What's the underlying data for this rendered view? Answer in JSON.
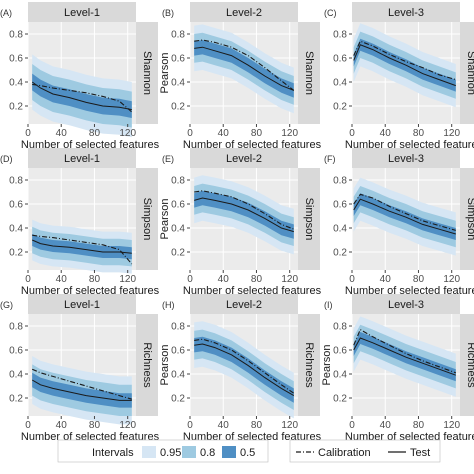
{
  "figure": {
    "legend": {
      "intervals_title": "Intervals",
      "intervals": [
        {
          "label": "0.95",
          "color": "#d6e6f4"
        },
        {
          "label": "0.8",
          "color": "#9ecae1"
        },
        {
          "label": "0.5",
          "color": "#4f8fc4"
        }
      ],
      "lines": [
        {
          "label": "Calibration",
          "style": "dotdash"
        },
        {
          "label": "Test",
          "style": "solid"
        }
      ]
    },
    "colors": {
      "strip": "#d9d9d9",
      "panel_bg": "#ebebeb",
      "grid": "#ffffff",
      "line": "#1a1a1a"
    }
  },
  "chart_data": [
    {
      "tag": "(A)",
      "type": "line",
      "level": "Level-1",
      "metric": "Shannon",
      "xlabel": "Number of selected features",
      "ylabel": "",
      "xlim": [
        0,
        130
      ],
      "ylim": [
        0.05,
        0.9
      ],
      "xticks": [
        "0",
        "40",
        "80",
        "120"
      ],
      "yticks": [
        "0.2",
        "0.4",
        "0.6",
        "0.8"
      ],
      "x": [
        5,
        15,
        30,
        50,
        70,
        90,
        110,
        125
      ],
      "test": [
        0.4,
        0.35,
        0.3,
        0.27,
        0.23,
        0.2,
        0.19,
        0.17
      ],
      "calibration": [
        0.38,
        0.37,
        0.35,
        0.33,
        0.31,
        0.28,
        0.24,
        0.15
      ],
      "band_half_width": {
        "0.5": 0.07,
        "0.8": 0.15,
        "0.95": 0.23
      }
    },
    {
      "tag": "(B)",
      "type": "line",
      "level": "Level-2",
      "metric": "Shannon",
      "xlabel": "Number of selected features",
      "ylabel": "Pearson",
      "xlim": [
        0,
        130
      ],
      "ylim": [
        0.05,
        0.9
      ],
      "xticks": [
        "0",
        "40",
        "80",
        "120"
      ],
      "yticks": [
        "0.2",
        "0.4",
        "0.6",
        "0.8"
      ],
      "x": [
        5,
        15,
        30,
        50,
        70,
        90,
        110,
        125
      ],
      "test": [
        0.68,
        0.69,
        0.66,
        0.62,
        0.54,
        0.45,
        0.37,
        0.33
      ],
      "calibration": [
        0.74,
        0.75,
        0.73,
        0.69,
        0.62,
        0.52,
        0.41,
        0.33
      ],
      "band_half_width": {
        "0.5": 0.06,
        "0.8": 0.12,
        "0.95": 0.19
      }
    },
    {
      "tag": "(C)",
      "type": "line",
      "level": "Level-3",
      "metric": "Shannon",
      "xlabel": "Number of selected features",
      "ylabel": "",
      "xlim": [
        0,
        130
      ],
      "ylim": [
        0.05,
        0.9
      ],
      "xticks": [
        "0",
        "40",
        "80",
        "120"
      ],
      "yticks": [
        "0.2",
        "0.4",
        "0.6",
        "0.8"
      ],
      "x": [
        2,
        10,
        25,
        45,
        65,
        85,
        105,
        125
      ],
      "test": [
        0.58,
        0.71,
        0.67,
        0.6,
        0.54,
        0.47,
        0.42,
        0.37
      ],
      "calibration": [
        0.62,
        0.74,
        0.7,
        0.63,
        0.57,
        0.52,
        0.46,
        0.42
      ],
      "band_half_width": {
        "0.5": 0.05,
        "0.8": 0.11,
        "0.95": 0.18
      }
    },
    {
      "tag": "(D)",
      "type": "line",
      "level": "Level-1",
      "metric": "Simpson",
      "xlabel": "Number of selected features",
      "ylabel": "",
      "xlim": [
        0,
        130
      ],
      "ylim": [
        0.05,
        0.9
      ],
      "xticks": [
        "0",
        "40",
        "80",
        "120"
      ],
      "yticks": [
        "0.2",
        "0.4",
        "0.6",
        "0.8"
      ],
      "x": [
        5,
        15,
        30,
        50,
        70,
        90,
        110,
        125
      ],
      "test": [
        0.3,
        0.27,
        0.25,
        0.24,
        0.22,
        0.2,
        0.2,
        0.19
      ],
      "calibration": [
        0.34,
        0.33,
        0.32,
        0.3,
        0.28,
        0.26,
        0.22,
        0.1
      ],
      "band_half_width": {
        "0.5": 0.05,
        "0.8": 0.11,
        "0.95": 0.17
      }
    },
    {
      "tag": "(E)",
      "type": "line",
      "level": "Level-2",
      "metric": "Simpson",
      "xlabel": "Number of selected features",
      "ylabel": "Pearson",
      "xlim": [
        0,
        130
      ],
      "ylim": [
        0.05,
        0.9
      ],
      "xticks": [
        "0",
        "40",
        "80",
        "120"
      ],
      "yticks": [
        "0.2",
        "0.4",
        "0.6",
        "0.8"
      ],
      "x": [
        5,
        15,
        30,
        50,
        70,
        90,
        110,
        125
      ],
      "test": [
        0.63,
        0.65,
        0.63,
        0.6,
        0.55,
        0.48,
        0.4,
        0.37
      ],
      "calibration": [
        0.7,
        0.71,
        0.69,
        0.66,
        0.6,
        0.52,
        0.43,
        0.39
      ],
      "band_half_width": {
        "0.5": 0.06,
        "0.8": 0.12,
        "0.95": 0.19
      }
    },
    {
      "tag": "(F)",
      "type": "line",
      "level": "Level-3",
      "metric": "Simpson",
      "xlabel": "Number of selected features",
      "ylabel": "",
      "xlim": [
        0,
        130
      ],
      "ylim": [
        0.05,
        0.9
      ],
      "xticks": [
        "0",
        "40",
        "80",
        "120"
      ],
      "yticks": [
        "0.2",
        "0.4",
        "0.6",
        "0.8"
      ],
      "x": [
        2,
        10,
        25,
        45,
        65,
        85,
        105,
        125
      ],
      "test": [
        0.55,
        0.64,
        0.6,
        0.54,
        0.49,
        0.43,
        0.39,
        0.35
      ],
      "calibration": [
        0.6,
        0.68,
        0.65,
        0.58,
        0.52,
        0.46,
        0.42,
        0.38
      ],
      "band_half_width": {
        "0.5": 0.05,
        "0.8": 0.11,
        "0.95": 0.18
      }
    },
    {
      "tag": "(G)",
      "type": "line",
      "level": "Level-1",
      "metric": "Richness",
      "xlabel": "Number of selected features",
      "ylabel": "",
      "xlim": [
        0,
        130
      ],
      "ylim": [
        0.05,
        0.9
      ],
      "xticks": [
        "0",
        "40",
        "80",
        "120"
      ],
      "yticks": [
        "0.2",
        "0.4",
        "0.6",
        "0.8"
      ],
      "x": [
        5,
        15,
        30,
        50,
        70,
        90,
        110,
        125
      ],
      "test": [
        0.35,
        0.31,
        0.28,
        0.25,
        0.22,
        0.2,
        0.18,
        0.18
      ],
      "calibration": [
        0.44,
        0.41,
        0.38,
        0.34,
        0.3,
        0.26,
        0.22,
        0.19
      ],
      "band_half_width": {
        "0.5": 0.06,
        "0.8": 0.13,
        "0.95": 0.2
      }
    },
    {
      "tag": "(H)",
      "type": "line",
      "level": "Level-2",
      "metric": "Richness",
      "xlabel": "Number of selected features",
      "ylabel": "Pearson",
      "xlim": [
        0,
        130
      ],
      "ylim": [
        0.05,
        0.9
      ],
      "xticks": [
        "0",
        "40",
        "80",
        "120"
      ],
      "yticks": [
        "0.2",
        "0.4",
        "0.6",
        "0.8"
      ],
      "x": [
        5,
        15,
        30,
        50,
        70,
        90,
        110,
        125
      ],
      "test": [
        0.64,
        0.65,
        0.62,
        0.56,
        0.47,
        0.37,
        0.28,
        0.22
      ],
      "calibration": [
        0.68,
        0.69,
        0.66,
        0.6,
        0.51,
        0.41,
        0.31,
        0.24
      ],
      "band_half_width": {
        "0.5": 0.06,
        "0.8": 0.12,
        "0.95": 0.19
      }
    },
    {
      "tag": "(I)",
      "type": "line",
      "level": "Level-3",
      "metric": "Richness",
      "xlabel": "Number of selected features",
      "ylabel": "Pearson",
      "xlim": [
        0,
        130
      ],
      "ylim": [
        0.05,
        0.9
      ],
      "xticks": [
        "0",
        "40",
        "80",
        "120"
      ],
      "yticks": [
        "0.2",
        "0.4",
        "0.6",
        "0.8"
      ],
      "x": [
        2,
        10,
        25,
        45,
        65,
        85,
        105,
        125
      ],
      "test": [
        0.6,
        0.7,
        0.66,
        0.6,
        0.54,
        0.49,
        0.44,
        0.39
      ],
      "calibration": [
        0.64,
        0.77,
        0.71,
        0.64,
        0.57,
        0.51,
        0.46,
        0.41
      ],
      "band_half_width": {
        "0.5": 0.05,
        "0.8": 0.11,
        "0.95": 0.18
      }
    }
  ]
}
